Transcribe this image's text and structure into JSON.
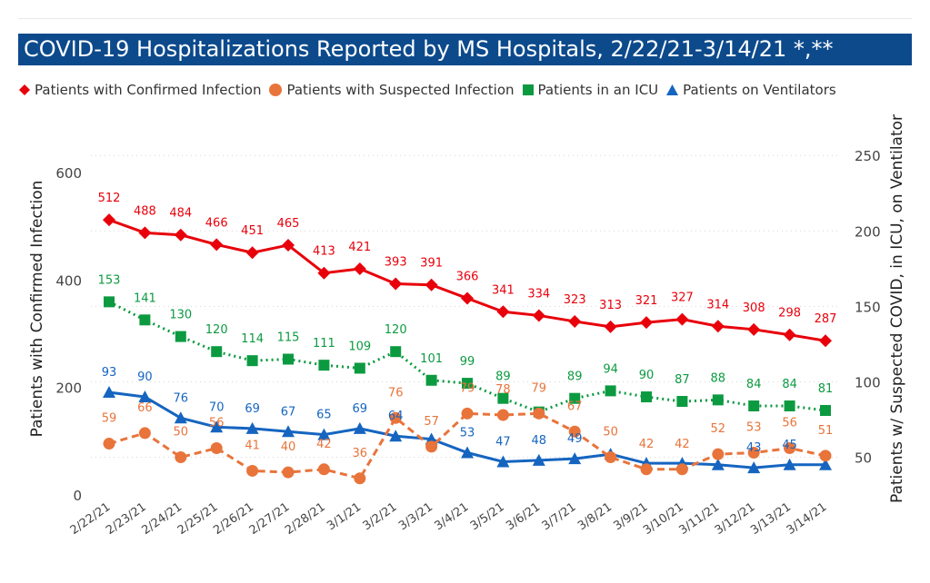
{
  "title": "COVID-19 Hospitalizations Reported by MS Hospitals, 2/22/21-3/14/21 *,**",
  "chart_data": {
    "type": "line",
    "title": "COVID-19 Hospitalizations Reported by MS Hospitals, 2/22/21-3/14/21 *,**",
    "categories": [
      "2/22/21",
      "2/23/21",
      "2/24/21",
      "2/25/21",
      "2/26/21",
      "2/27/21",
      "2/28/21",
      "3/1/21",
      "3/2/21",
      "3/3/21",
      "3/4/21",
      "3/5/21",
      "3/6/21",
      "3/7/21",
      "3/8/21",
      "3/9/21",
      "3/10/21",
      "3/11/21",
      "3/12/21",
      "3/13/21",
      "3/14/21"
    ],
    "y_left_label": "Patients with Confirmed Infection",
    "y_right_label": "Patients w/ Suspected COVID, in ICU, on Ventilator",
    "y_left_range": [
      0,
      600
    ],
    "y_left_ticks": [
      0,
      200,
      400,
      600
    ],
    "y_right_range": [
      50,
      250
    ],
    "y_right_ticks": [
      50,
      100,
      150,
      200,
      250
    ],
    "legend_position": "top-left",
    "grid": "horizontal dotted",
    "series": [
      {
        "name": "Patients with Confirmed Infection",
        "axis": "left",
        "marker": "diamond",
        "line": "solid",
        "color": "#e8000b",
        "values": [
          512,
          488,
          484,
          466,
          451,
          465,
          413,
          421,
          393,
          391,
          366,
          341,
          334,
          323,
          313,
          321,
          327,
          314,
          308,
          298,
          287
        ]
      },
      {
        "name": "Patients with Suspected Infection",
        "axis": "right",
        "marker": "circle",
        "line": "dashed",
        "color": "#e8743b",
        "values": [
          59,
          66,
          50,
          56,
          41,
          40,
          42,
          36,
          76,
          57,
          79,
          78,
          79,
          67,
          50,
          42,
          42,
          52,
          53,
          56,
          51
        ]
      },
      {
        "name": "Patients in an ICU",
        "axis": "right",
        "marker": "square",
        "line": "dotted",
        "color": "#0c9a41",
        "values": [
          153,
          141,
          130,
          120,
          114,
          115,
          111,
          109,
          120,
          101,
          99,
          89,
          80,
          89,
          94,
          90,
          87,
          88,
          84,
          84,
          81
        ]
      },
      {
        "name": "Patients on Ventilators",
        "axis": "right",
        "marker": "triangle",
        "line": "solid",
        "color": "#1565c0",
        "values": [
          93,
          90,
          76,
          70,
          69,
          67,
          65,
          69,
          64,
          62,
          53,
          47,
          48,
          49,
          52,
          46,
          46,
          45,
          43,
          45,
          45
        ]
      }
    ],
    "point_labels": {
      "Patients with Confirmed Infection": [
        "512",
        "488",
        "484",
        "466",
        "451",
        "465",
        "413",
        "421",
        "393",
        "391",
        "366",
        "341",
        "334",
        "323",
        "313",
        "321",
        "327",
        "314",
        "308",
        "298",
        "287"
      ],
      "Patients with Suspected Infection": [
        "59",
        "66",
        "50",
        "56",
        "41",
        "40",
        "42",
        "36",
        "76",
        "57",
        "79",
        "78",
        "79",
        "67",
        "50",
        "42",
        "42",
        "52",
        "53",
        "56",
        "51"
      ],
      "Patients in an ICU": [
        "153",
        "141",
        "130",
        "120",
        "114",
        "115",
        "111",
        "109",
        "120",
        "101",
        "99",
        "89",
        "",
        "89",
        "94",
        "90",
        "87",
        "88",
        "84",
        "84",
        "81"
      ],
      "Patients on Ventilators": [
        "93",
        "90",
        "76",
        "70",
        "69",
        "67",
        "65",
        "69",
        "64",
        "",
        "53",
        "47",
        "48",
        "49",
        "",
        "",
        "",
        "",
        "43",
        "45",
        ""
      ]
    }
  }
}
